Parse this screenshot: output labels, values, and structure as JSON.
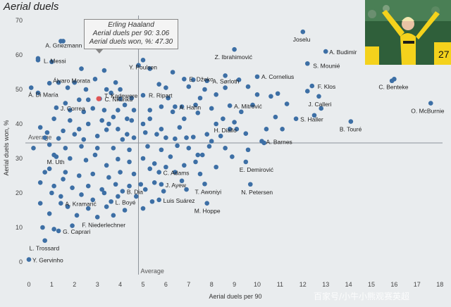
{
  "title": "Aerial duels",
  "watermark": "百家号/小牛小熊观赛英超",
  "photo": {
    "description_icon": "player-celebrating-photo"
  },
  "tooltip": {
    "name": "Erling Haaland",
    "row1_label": "Aerial duels per 90:",
    "row1_value": "3.06",
    "row2_label": "Aerial duels won, %:",
    "row2_value": "47.30"
  },
  "chart_data": {
    "type": "scatter",
    "xlabel": "Aerial duels per 90",
    "ylabel": "Aerial duels won, %",
    "xlim": [
      -0.3,
      18.5
    ],
    "ylim": [
      -3,
      72
    ],
    "xticks": [
      0,
      1,
      2,
      3,
      4,
      5,
      6,
      7,
      8,
      9,
      10,
      11,
      12,
      13,
      14,
      15,
      16,
      17,
      18
    ],
    "yticks": [
      0,
      10,
      20,
      30,
      40,
      50,
      60,
      70
    ],
    "average_x": 4.8,
    "average_y": 34.5,
    "average_label": "Average",
    "point_color": "#3d6fa5",
    "highlight_color": "#e05555",
    "highlight": {
      "x": 3.06,
      "y": 47.3
    },
    "labeled_points": [
      {
        "label": "Joselu",
        "x": 12.0,
        "y": 66.7
      },
      {
        "label": "A. Budimir",
        "x": 13.0,
        "y": 61.0
      },
      {
        "label": "Z. Ibrahimović",
        "x": 9.0,
        "y": 61.6
      },
      {
        "label": "S. Mounié",
        "x": 12.2,
        "y": 57.5
      },
      {
        "label": "A. Griezmann",
        "x": 1.4,
        "y": 64.0
      },
      {
        "label": "L. Messi",
        "x": 0.4,
        "y": 58.5
      },
      {
        "label": "Y. Poulsen",
        "x": 5.0,
        "y": 58.5
      },
      {
        "label": "Álvaro Morata",
        "x": 1.7,
        "y": 50.5
      },
      {
        "label": "A. Sørloth",
        "x": 8.6,
        "y": 54.0
      },
      {
        "label": "A. Cornelius",
        "x": 10.0,
        "y": 53.7
      },
      {
        "label": "E. Džeko",
        "x": 6.8,
        "y": 53.0
      },
      {
        "label": "T. Kadewere",
        "x": 3.4,
        "y": 50.0
      },
      {
        "label": "C. Benteke",
        "x": 16.0,
        "y": 53.0
      },
      {
        "label": "F. Klos",
        "x": 12.4,
        "y": 51.0
      },
      {
        "label": "C. Nkunku",
        "x": 3.1,
        "y": 47.3
      },
      {
        "label": "R. Ripart",
        "x": 5.0,
        "y": 48.3
      },
      {
        "label": "Á. Di María",
        "x": 0.1,
        "y": 50.5
      },
      {
        "label": "J. Calleri",
        "x": 12.7,
        "y": 48.0
      },
      {
        "label": "O. McBurnie",
        "x": 17.6,
        "y": 46.0
      },
      {
        "label": "A. Hahn",
        "x": 6.4,
        "y": 45.0
      },
      {
        "label": "A. Mitrović",
        "x": 8.8,
        "y": 45.3
      },
      {
        "label": "J. Correa",
        "x": 1.2,
        "y": 44.7
      },
      {
        "label": "S. Haller",
        "x": 11.7,
        "y": 41.5
      },
      {
        "label": "H. Diallo",
        "x": 8.2,
        "y": 40.0
      },
      {
        "label": "B. Touré",
        "x": 14.1,
        "y": 40.7
      },
      {
        "label": "A. Barnes",
        "x": 10.2,
        "y": 35.0
      },
      {
        "label": "M. Uth",
        "x": 1.1,
        "y": 31.0
      },
      {
        "label": "E. Demirović",
        "x": 9.5,
        "y": 29.0
      },
      {
        "label": "C. Adams",
        "x": 5.7,
        "y": 26.0
      },
      {
        "label": "J. Ayew",
        "x": 5.8,
        "y": 22.5
      },
      {
        "label": "T. Awoniyi",
        "x": 7.7,
        "y": 22.6
      },
      {
        "label": "N. Petersen",
        "x": 9.7,
        "y": 22.5
      },
      {
        "label": "B. Dia",
        "x": 4.1,
        "y": 20.5
      },
      {
        "label": "Luis Suárez",
        "x": 5.7,
        "y": 18.0
      },
      {
        "label": "L. Boyé",
        "x": 3.6,
        "y": 17.5
      },
      {
        "label": "A. Kramarić",
        "x": 1.4,
        "y": 17.0
      },
      {
        "label": "M. Hoppe",
        "x": 7.8,
        "y": 17.0
      },
      {
        "label": "F. Niederlechner",
        "x": 3.0,
        "y": 13.0
      },
      {
        "label": "G. Caprari",
        "x": 1.3,
        "y": 9.0
      },
      {
        "label": "L. Trossard",
        "x": 0.7,
        "y": 6.2
      },
      {
        "label": "Y. Gervinho",
        "x": 0.0,
        "y": 0.7
      }
    ],
    "unlabeled_points": [
      [
        1.5,
        64
      ],
      [
        0.4,
        59
      ],
      [
        1.0,
        58
      ],
      [
        2.3,
        56
      ],
      [
        3.3,
        55.5
      ],
      [
        4.8,
        57
      ],
      [
        5.3,
        56
      ],
      [
        2.9,
        53
      ],
      [
        3.8,
        52
      ],
      [
        1.3,
        52
      ],
      [
        0.9,
        51.8
      ],
      [
        2.0,
        52
      ],
      [
        2.5,
        50
      ],
      [
        3.6,
        49
      ],
      [
        4.0,
        50
      ],
      [
        4.5,
        47.5
      ],
      [
        0.4,
        49
      ],
      [
        1.6,
        46
      ],
      [
        2.2,
        47
      ],
      [
        2.8,
        44.5
      ],
      [
        3.9,
        44
      ],
      [
        4.2,
        45.5
      ],
      [
        4.6,
        44
      ],
      [
        5.3,
        44
      ],
      [
        6.1,
        47.5
      ],
      [
        6.3,
        43.5
      ],
      [
        5.0,
        40
      ],
      [
        4.5,
        41
      ],
      [
        3.7,
        42
      ],
      [
        3.2,
        41
      ],
      [
        2.6,
        40
      ],
      [
        1.8,
        41
      ],
      [
        1.1,
        41.5
      ],
      [
        0.5,
        39
      ],
      [
        0.7,
        36
      ],
      [
        1.3,
        35.8
      ],
      [
        2.0,
        37
      ],
      [
        2.4,
        35.5
      ],
      [
        3.0,
        36.5
      ],
      [
        3.4,
        38.3
      ],
      [
        3.9,
        38.5
      ],
      [
        4.3,
        37
      ],
      [
        4.6,
        36
      ],
      [
        4.1,
        35.5
      ],
      [
        5.1,
        37.5
      ],
      [
        5.6,
        37
      ],
      [
        6.0,
        36
      ],
      [
        6.4,
        35.7
      ],
      [
        6.9,
        36
      ],
      [
        7.2,
        36.2
      ],
      [
        7.8,
        37
      ],
      [
        8.0,
        35
      ],
      [
        8.4,
        36.5
      ],
      [
        9.1,
        38.5
      ],
      [
        9.5,
        37.2
      ],
      [
        10.4,
        38.5
      ],
      [
        11.1,
        38.5
      ],
      [
        0.2,
        33
      ],
      [
        0.9,
        34
      ],
      [
        1.6,
        33
      ],
      [
        2.3,
        33.5
      ],
      [
        3.0,
        33
      ],
      [
        3.7,
        33
      ],
      [
        4.4,
        32.5
      ],
      [
        5.2,
        33.5
      ],
      [
        5.8,
        32.5
      ],
      [
        6.5,
        33.7
      ],
      [
        7.0,
        33
      ],
      [
        7.6,
        31
      ],
      [
        8.6,
        33
      ],
      [
        1.2,
        30.5
      ],
      [
        1.8,
        30
      ],
      [
        2.5,
        29.5
      ],
      [
        2.9,
        31
      ],
      [
        3.4,
        28
      ],
      [
        3.9,
        29.8
      ],
      [
        4.4,
        29
      ],
      [
        5.0,
        30
      ],
      [
        5.5,
        28.5
      ],
      [
        6.2,
        30.5
      ],
      [
        6.8,
        28
      ],
      [
        7.4,
        31
      ],
      [
        0.9,
        27
      ],
      [
        1.6,
        26
      ],
      [
        2.2,
        25
      ],
      [
        2.8,
        25.5
      ],
      [
        3.5,
        24.5
      ],
      [
        4.0,
        26
      ],
      [
        4.6,
        25.5
      ],
      [
        5.3,
        27
      ],
      [
        6.0,
        27.5
      ],
      [
        7.3,
        29
      ],
      [
        0.5,
        23
      ],
      [
        1.1,
        22
      ],
      [
        1.9,
        21.5
      ],
      [
        2.6,
        22
      ],
      [
        3.2,
        21
      ],
      [
        3.8,
        22.5
      ],
      [
        4.4,
        22
      ],
      [
        5.1,
        21
      ],
      [
        5.5,
        23
      ],
      [
        1.0,
        20
      ],
      [
        1.4,
        19
      ],
      [
        2.3,
        19.5
      ],
      [
        3.3,
        20
      ],
      [
        3.9,
        19
      ],
      [
        4.7,
        19
      ],
      [
        5.4,
        17.5
      ],
      [
        0.5,
        17
      ],
      [
        1.7,
        16
      ],
      [
        2.6,
        15.5
      ],
      [
        3.4,
        16
      ],
      [
        4.2,
        15
      ],
      [
        5.0,
        15.5
      ],
      [
        0.9,
        14
      ],
      [
        2.1,
        13.5
      ],
      [
        3.7,
        13.5
      ],
      [
        0.6,
        10
      ],
      [
        1.1,
        9.5
      ],
      [
        1.9,
        10.5
      ],
      [
        12.2,
        49.5
      ],
      [
        12.8,
        44.5
      ],
      [
        15.9,
        52.5
      ],
      [
        10.0,
        48.5
      ],
      [
        10.6,
        48
      ],
      [
        10.9,
        48.8
      ],
      [
        9.8,
        45.5
      ],
      [
        9.3,
        43.5
      ],
      [
        8.0,
        44.5
      ],
      [
        7.4,
        43.2
      ],
      [
        6.8,
        41.5
      ],
      [
        7.5,
        47.5
      ],
      [
        7.0,
        50.8
      ],
      [
        7.7,
        50
      ],
      [
        8.2,
        48.5
      ],
      [
        8.6,
        50.5
      ],
      [
        9.6,
        50.8
      ],
      [
        9.2,
        52.8
      ],
      [
        7.8,
        52.5
      ],
      [
        7.2,
        52.8
      ],
      [
        6.0,
        50.5
      ],
      [
        5.7,
        51.5
      ],
      [
        6.3,
        55
      ],
      [
        5.8,
        45
      ],
      [
        6.7,
        45
      ],
      [
        8.5,
        41.5
      ],
      [
        8.8,
        38.5
      ],
      [
        9.0,
        40.5
      ],
      [
        10.8,
        42
      ],
      [
        7.3,
        45.5
      ],
      [
        6.6,
        39
      ],
      [
        7.9,
        33.5
      ],
      [
        8.9,
        30.5
      ],
      [
        9.6,
        32.5
      ],
      [
        5.8,
        38.5
      ],
      [
        5.3,
        41.5
      ],
      [
        4.3,
        41.5
      ],
      [
        3.3,
        44
      ],
      [
        2.4,
        43.5
      ],
      [
        1.8,
        44
      ],
      [
        2.2,
        38.5
      ],
      [
        1.5,
        38
      ],
      [
        0.8,
        37.5
      ],
      [
        6.7,
        23.5
      ],
      [
        7.5,
        25.5
      ],
      [
        6.9,
        21
      ],
      [
        5.9,
        20.5
      ],
      [
        4.9,
        22.5
      ],
      [
        10.3,
        34.5
      ],
      [
        8.2,
        27.5
      ],
      [
        6.4,
        26
      ],
      [
        2.8,
        18
      ],
      [
        0.7,
        26
      ],
      [
        1.5,
        24
      ],
      [
        3.5,
        40
      ],
      [
        2.6,
        47
      ],
      [
        4.0,
        47.3
      ],
      [
        11.3,
        45.8
      ],
      [
        12.5,
        42.5
      ]
    ]
  }
}
